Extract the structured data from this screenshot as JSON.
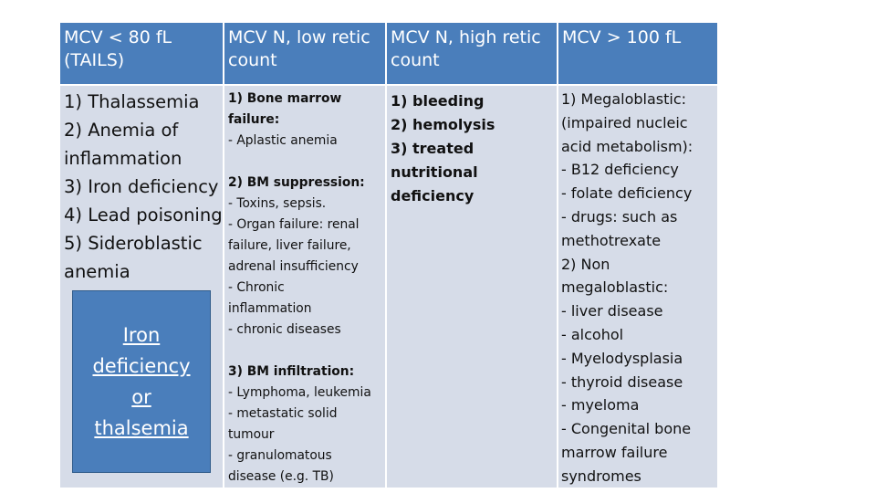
{
  "headers": [
    "MCV < 80 fL\n (TAILS)",
    "MCV N, low retic\ncount",
    "MCV N, high retic\ncount",
    "MCV > 100 fL"
  ],
  "col1": {
    "items": [
      "1) Thalassemia",
      "2) Anemia of\ninflammation",
      "3) Iron deficiency",
      "4) Lead poisoning",
      "5) Sideroblastic\nanemia"
    ],
    "callout": "Iron\ndeficiency\nor\nthalsemia"
  },
  "col2": {
    "section1_title": "1)  Bone marrow\n       failure:",
    "section1_items": "-   Aplastic anemia",
    "section2_title": "2) BM suppression:",
    "section2_items": "- Toxins, sepsis.\n- Organ failure: renal\nfailure, liver failure,\nadrenal insufficiency\n-   Chronic\n       inflammation\n-   chronic diseases",
    "section3_title": "3) BM infiltration:",
    "section3_items": "-  Lymphoma, leukemia\n-    metastatic solid\n        tumour\n-    granulomatous\n       disease (e.g. TB)"
  },
  "col3": {
    "items": "1) bleeding\n2) hemolysis\n3) treated nutritional\ndeficiency"
  },
  "col4": {
    "line1": "1) Megaloblastic:",
    "block1": "(impaired nucleic\nacid metabolism):\n- B12 deficiency\n- folate deficiency\n- drugs: such as\nmethotrexate",
    "line2": " 2) Non\nmegaloblastic:",
    "block2": "- liver disease\n- alcohol\n- Myelodysplasia\n- thyroid disease\n- myeloma\n- Congenital bone\nmarrow failure\nsyndromes"
  },
  "colors": {
    "header_bg": "#4a7ebb",
    "body_bg": "#d6dce8",
    "callout_bg": "#4a7ebb"
  }
}
